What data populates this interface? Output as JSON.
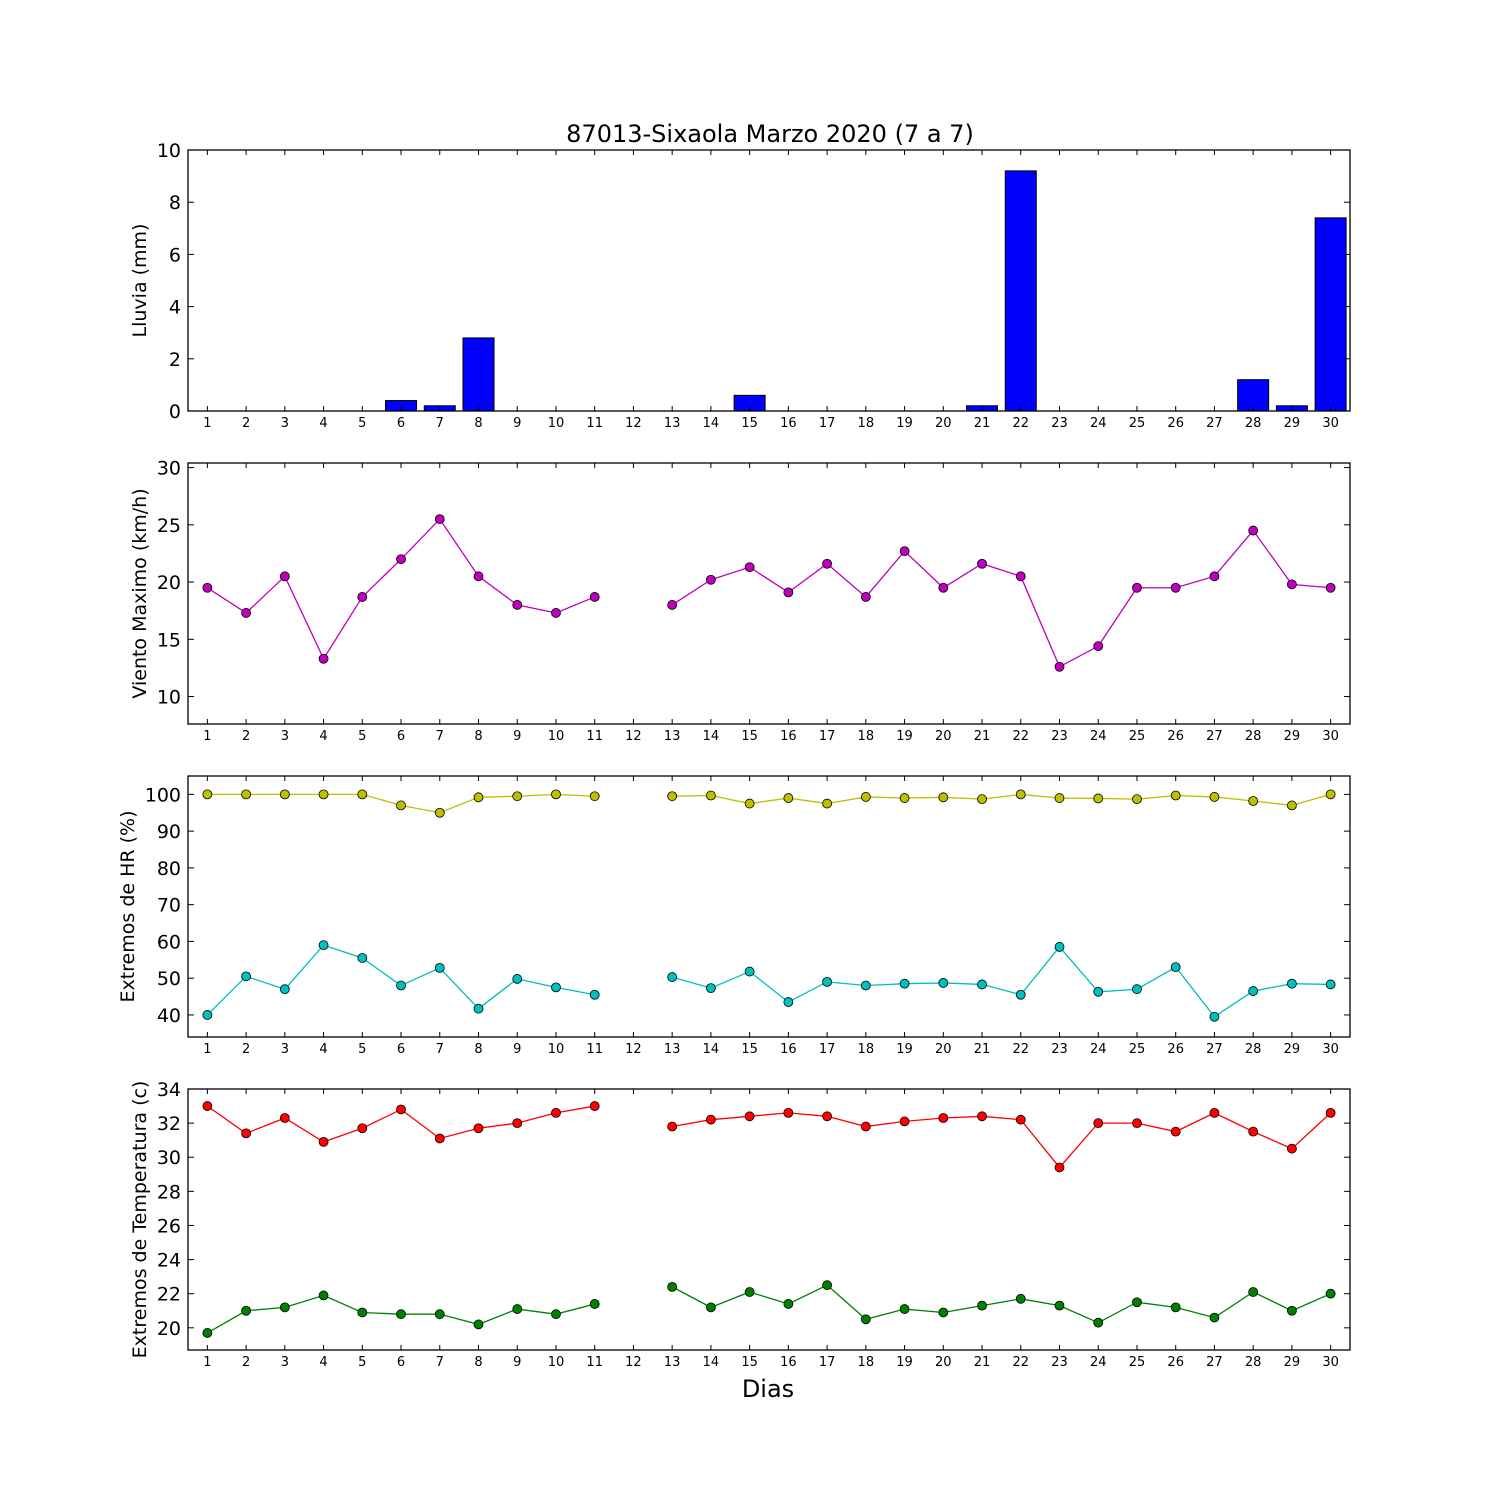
{
  "title": "87013-Sixaola Marzo 2020  (7 a 7)",
  "xlabel": "Dias",
  "chart_data": [
    {
      "type": "bar",
      "ylabel": "Lluvia (mm)",
      "ylim": [
        0,
        10
      ],
      "yticks": [
        0,
        2,
        4,
        6,
        8,
        10
      ],
      "categories": [
        "1",
        "2",
        "3",
        "4",
        "5",
        "6",
        "7",
        "8",
        "9",
        "10",
        "11",
        "12",
        "13",
        "14",
        "15",
        "16",
        "17",
        "18",
        "19",
        "20",
        "21",
        "22",
        "23",
        "24",
        "25",
        "26",
        "27",
        "28",
        "29",
        "30"
      ],
      "series": [
        {
          "color": "#0000ff",
          "values": [
            0,
            0,
            0,
            0,
            0,
            0.4,
            0.2,
            2.8,
            0,
            0,
            0,
            0,
            0,
            0,
            0.6,
            0,
            0,
            0,
            0,
            0,
            0.2,
            9.2,
            0,
            0,
            0,
            0,
            0,
            1.2,
            0.2,
            7.4
          ]
        }
      ]
    },
    {
      "type": "line",
      "ylabel": "Viento Maximo (km/h)",
      "ylim": [
        7.6,
        30.4
      ],
      "yticks": [
        10,
        15,
        20,
        25,
        30
      ],
      "categories": [
        "1",
        "2",
        "3",
        "4",
        "5",
        "6",
        "7",
        "8",
        "9",
        "10",
        "11",
        "12",
        "13",
        "14",
        "15",
        "16",
        "17",
        "18",
        "19",
        "20",
        "21",
        "22",
        "23",
        "24",
        "25",
        "26",
        "27",
        "28",
        "29",
        "30"
      ],
      "series": [
        {
          "color": "#bf00bf",
          "values": [
            19.5,
            17.3,
            20.5,
            13.3,
            18.7,
            22.0,
            25.5,
            20.5,
            18.0,
            17.3,
            18.7,
            null,
            18.0,
            20.2,
            21.3,
            19.1,
            21.6,
            18.7,
            22.7,
            19.5,
            21.6,
            20.5,
            12.6,
            14.4,
            19.5,
            19.5,
            20.5,
            24.5,
            19.8,
            19.5
          ]
        }
      ]
    },
    {
      "type": "line",
      "ylabel": "Extremos de HR (%)",
      "ylim": [
        34,
        105
      ],
      "yticks": [
        40,
        50,
        60,
        70,
        80,
        90,
        100
      ],
      "categories": [
        "1",
        "2",
        "3",
        "4",
        "5",
        "6",
        "7",
        "8",
        "9",
        "10",
        "11",
        "12",
        "13",
        "14",
        "15",
        "16",
        "17",
        "18",
        "19",
        "20",
        "21",
        "22",
        "23",
        "24",
        "25",
        "26",
        "27",
        "28",
        "29",
        "30"
      ],
      "series": [
        {
          "color": "#bfbf00",
          "values": [
            100,
            100,
            100,
            100,
            100,
            97,
            95,
            99.2,
            99.5,
            100,
            99.5,
            null,
            99.5,
            99.7,
            97.5,
            99,
            97.5,
            99.3,
            99,
            99.2,
            98.7,
            100,
            99,
            98.9,
            98.7,
            99.7,
            99.3,
            98.2,
            97,
            100
          ]
        },
        {
          "color": "#00bfbf",
          "values": [
            40,
            50.5,
            47,
            59,
            55.5,
            48,
            52.8,
            41.7,
            49.8,
            47.5,
            45.5,
            null,
            50.3,
            47.3,
            51.8,
            43.5,
            49,
            48,
            48.5,
            48.7,
            48.3,
            45.5,
            58.5,
            46.3,
            47,
            53,
            39.5,
            46.5,
            48.5,
            48.3
          ]
        }
      ]
    },
    {
      "type": "line",
      "ylabel": "Extremos de Temperatura (c)",
      "ylim": [
        18.7,
        34
      ],
      "yticks": [
        20,
        22,
        24,
        26,
        28,
        30,
        32,
        34
      ],
      "categories": [
        "1",
        "2",
        "3",
        "4",
        "5",
        "6",
        "7",
        "8",
        "9",
        "10",
        "11",
        "12",
        "13",
        "14",
        "15",
        "16",
        "17",
        "18",
        "19",
        "20",
        "21",
        "22",
        "23",
        "24",
        "25",
        "26",
        "27",
        "28",
        "29",
        "30"
      ],
      "series": [
        {
          "color": "#ff0000",
          "values": [
            33.0,
            31.4,
            32.3,
            30.9,
            31.7,
            32.8,
            31.1,
            31.7,
            32.0,
            32.6,
            33.0,
            null,
            31.8,
            32.2,
            32.4,
            32.6,
            32.4,
            31.8,
            32.1,
            32.3,
            32.4,
            32.2,
            29.4,
            32.0,
            32.0,
            31.5,
            32.6,
            31.5,
            30.5,
            32.6
          ]
        },
        {
          "color": "#008000",
          "values": [
            19.7,
            21.0,
            21.2,
            21.9,
            20.9,
            20.8,
            20.8,
            20.2,
            21.1,
            20.8,
            21.4,
            null,
            22.4,
            21.2,
            22.1,
            21.4,
            22.5,
            20.5,
            21.1,
            20.9,
            21.3,
            21.7,
            21.3,
            20.3,
            21.5,
            21.2,
            20.6,
            22.1,
            21.0,
            22.0
          ]
        }
      ]
    }
  ]
}
